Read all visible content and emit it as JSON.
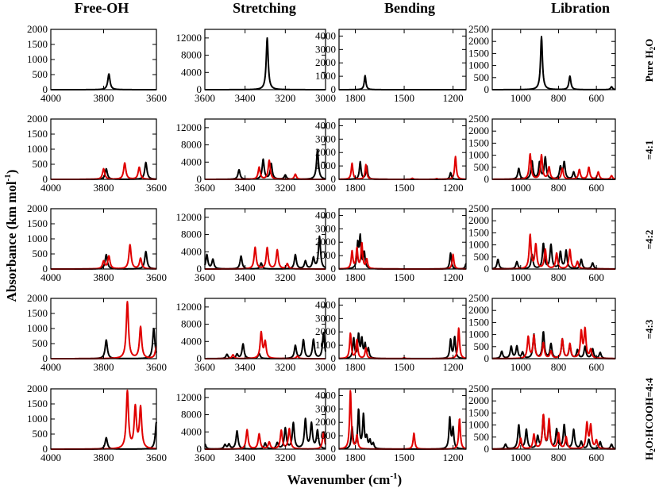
{
  "chart_data": {
    "type": "line",
    "layout": "grid",
    "xlabel_html": {
      "main": "Wavenumber (cm",
      "sup": "-1",
      "tail": ")"
    },
    "ylabel_html": {
      "main": "Absorbance (km mol",
      "sup": "-1",
      "tail": ")"
    },
    "columns": [
      {
        "title": "Free-OH",
        "xlim": [
          4000,
          3600
        ],
        "xticks": [
          4000,
          3800,
          3600
        ],
        "ylim": [
          0,
          2000
        ],
        "yticks": [
          0,
          500,
          1000,
          1500,
          2000
        ]
      },
      {
        "title": "Stretching",
        "xlim": [
          3600,
          3000
        ],
        "xticks": [
          3600,
          3400,
          3200,
          3000
        ],
        "ylim": [
          0,
          14000
        ],
        "yticks": [
          0,
          4000,
          8000,
          12000
        ]
      },
      {
        "title": "Bending",
        "xlim": [
          1900,
          1120
        ],
        "xticks": [
          1800,
          1500,
          1200
        ],
        "ylim": [
          0,
          4500
        ],
        "yticks": [
          0,
          1000,
          2000,
          3000,
          4000
        ]
      },
      {
        "title": "Libration",
        "xlim": [
          1150,
          500
        ],
        "xticks": [
          1000,
          800,
          600
        ],
        "ylim": [
          0,
          2500
        ],
        "yticks": [
          0,
          500,
          1000,
          1500,
          2000,
          2500
        ]
      }
    ],
    "rows": [
      {
        "label": {
          "pre": "Pure H",
          "sub": "2",
          "post": "O"
        }
      },
      {
        "label": {
          "pre": "=4:1",
          "sub": "",
          "post": ""
        }
      },
      {
        "label": {
          "pre": "=4:2",
          "sub": "",
          "post": ""
        }
      },
      {
        "label": {
          "pre": "=4:3",
          "sub": "",
          "post": ""
        }
      },
      {
        "label": {
          "pre": "H",
          "sub": "2",
          "post": "O:HCOOH=4:4"
        }
      }
    ],
    "series_styles": {
      "black": "#000000",
      "red": "#e00000"
    },
    "peak_width": {
      "0": 5,
      "1": 6,
      "2": 6,
      "3": 6
    },
    "panels": [
      [
        {
          "black": [
            [
              3780,
              520
            ]
          ],
          "red": []
        },
        {
          "black": [
            [
              3290,
              12000
            ]
          ],
          "red": []
        },
        {
          "black": [
            [
              1740,
              1050
            ]
          ],
          "red": []
        },
        {
          "black": [
            [
              890,
              2200
            ],
            [
              740,
              560
            ],
            [
              520,
              120
            ]
          ],
          "red": []
        }
      ],
      [
        {
          "black": [
            [
              3790,
              350
            ],
            [
              3640,
              560
            ]
          ],
          "red": [
            [
              3800,
              350
            ],
            [
              3720,
              540
            ],
            [
              3665,
              400
            ]
          ]
        },
        {
          "black": [
            [
              3430,
              2200
            ],
            [
              3310,
              4600
            ],
            [
              3270,
              3600
            ],
            [
              3200,
              1000
            ],
            [
              3040,
              6800
            ]
          ],
          "red": [
            [
              3330,
              2800
            ],
            [
              3280,
              4400
            ],
            [
              3150,
              1200
            ]
          ]
        },
        {
          "black": [
            [
              1770,
              1300
            ],
            [
              1730,
              1000
            ],
            [
              1215,
              500
            ]
          ],
          "red": [
            [
              1820,
              1200
            ],
            [
              1735,
              1100
            ],
            [
              1450,
              80
            ],
            [
              1300,
              50
            ],
            [
              1185,
              1700
            ]
          ]
        },
        {
          "black": [
            [
              1010,
              450
            ],
            [
              940,
              750
            ],
            [
              900,
              700
            ],
            [
              870,
              900
            ],
            [
              790,
              500
            ],
            [
              770,
              700
            ],
            [
              720,
              300
            ]
          ],
          "red": [
            [
              950,
              1050
            ],
            [
              890,
              1000
            ],
            [
              850,
              500
            ],
            [
              780,
              450
            ],
            [
              690,
              400
            ],
            [
              640,
              500
            ],
            [
              590,
              300
            ],
            [
              520,
              150
            ]
          ]
        }
      ],
      [
        {
          "black": [
            [
              3790,
              480
            ],
            [
              3640,
              580
            ]
          ],
          "red": [
            [
              3800,
              250
            ],
            [
              3780,
              420
            ],
            [
              3700,
              800
            ],
            [
              3660,
              350
            ]
          ]
        },
        {
          "black": [
            [
              3590,
              3300
            ],
            [
              3560,
              2200
            ],
            [
              3420,
              3000
            ],
            [
              3320,
              1400
            ],
            [
              3150,
              3300
            ],
            [
              3100,
              1800
            ],
            [
              3060,
              2500
            ],
            [
              3030,
              7500
            ]
          ],
          "red": [
            [
              3350,
              5000
            ],
            [
              3290,
              4900
            ],
            [
              3240,
              4400
            ],
            [
              3190,
              1200
            ]
          ]
        },
        {
          "black": [
            [
              1785,
              1800
            ],
            [
              1770,
              2300
            ],
            [
              1745,
              1200
            ],
            [
              1215,
              1200
            ],
            [
              1120,
              400
            ]
          ],
          "red": [
            [
              1820,
              1300
            ],
            [
              1790,
              1500
            ],
            [
              1760,
              1900
            ],
            [
              1730,
              700
            ],
            [
              1200,
              1100
            ]
          ]
        },
        {
          "black": [
            [
              1120,
              400
            ],
            [
              1020,
              300
            ],
            [
              940,
              600
            ],
            [
              880,
              1050
            ],
            [
              840,
              1000
            ],
            [
              790,
              700
            ],
            [
              760,
              750
            ],
            [
              680,
              400
            ],
            [
              620,
              250
            ]
          ],
          "red": [
            [
              950,
              1400
            ],
            [
              920,
              1000
            ],
            [
              870,
              800
            ],
            [
              810,
              650
            ],
            [
              740,
              800
            ],
            [
              700,
              300
            ]
          ]
        }
      ],
      [
        {
          "black": [
            [
              3790,
              620
            ],
            [
              3610,
              1000
            ]
          ],
          "red": [
            [
              3710,
              1880
            ],
            [
              3660,
              1050
            ],
            [
              3600,
              400
            ]
          ]
        },
        {
          "black": [
            [
              3490,
              1000
            ],
            [
              3440,
              1000
            ],
            [
              3410,
              3400
            ],
            [
              3330,
              1200
            ],
            [
              3150,
              3000
            ],
            [
              3110,
              4300
            ],
            [
              3060,
              4400
            ],
            [
              3010,
              6000
            ]
          ],
          "red": [
            [
              3460,
              900
            ],
            [
              3320,
              6000
            ],
            [
              3300,
              3800
            ],
            [
              3140,
              600
            ]
          ]
        },
        {
          "black": [
            [
              1810,
              1500
            ],
            [
              1780,
              1750
            ],
            [
              1760,
              1400
            ],
            [
              1740,
              1000
            ],
            [
              1720,
              700
            ],
            [
              1215,
              1400
            ],
            [
              1190,
              1600
            ]
          ],
          "red": [
            [
              1830,
              1900
            ],
            [
              1790,
              1400
            ],
            [
              1735,
              800
            ],
            [
              1500,
              70
            ],
            [
              1165,
              2300
            ]
          ]
        },
        {
          "black": [
            [
              1100,
              300
            ],
            [
              1050,
              500
            ],
            [
              1020,
              500
            ],
            [
              990,
              250
            ],
            [
              930,
              1000
            ],
            [
              880,
              1100
            ],
            [
              840,
              600
            ],
            [
              780,
              800
            ],
            [
              740,
              550
            ],
            [
              700,
              350
            ],
            [
              660,
              500
            ],
            [
              620,
              400
            ],
            [
              580,
              250
            ]
          ],
          "red": [
            [
              960,
              900
            ],
            [
              930,
              950
            ],
            [
              880,
              650
            ],
            [
              840,
              300
            ],
            [
              780,
              800
            ],
            [
              740,
              600
            ],
            [
              680,
              1100
            ],
            [
              660,
              1200
            ],
            [
              630,
              350
            ]
          ]
        }
      ],
      [
        {
          "black": [
            [
              3790,
              380
            ],
            [
              3600,
              900
            ]
          ],
          "red": [
            [
              3710,
              1900
            ],
            [
              3680,
              1350
            ],
            [
              3660,
              1350
            ]
          ]
        },
        {
          "black": [
            [
              3600,
              1200
            ],
            [
              3500,
              1000
            ],
            [
              3480,
              1100
            ],
            [
              3440,
              4200
            ],
            [
              3300,
              1400
            ],
            [
              3240,
              1400
            ],
            [
              3200,
              4800
            ],
            [
              3160,
              6000
            ],
            [
              3100,
              6800
            ],
            [
              3070,
              5800
            ],
            [
              3040,
              4200
            ]
          ],
          "red": [
            [
              3390,
              4500
            ],
            [
              3330,
              3500
            ],
            [
              3280,
              1600
            ],
            [
              3220,
              4300
            ],
            [
              3180,
              4700
            ],
            [
              3010,
              4000
            ]
          ]
        },
        {
          "black": [
            [
              1820,
              1600
            ],
            [
              1780,
              2900
            ],
            [
              1750,
              2500
            ],
            [
              1730,
              800
            ],
            [
              1710,
              600
            ],
            [
              1690,
              400
            ],
            [
              1220,
              2300
            ],
            [
              1200,
              1500
            ]
          ],
          "red": [
            [
              1830,
              4400
            ],
            [
              1790,
              1000
            ],
            [
              1440,
              1200
            ],
            [
              1160,
              2300
            ]
          ]
        },
        {
          "black": [
            [
              1080,
              200
            ],
            [
              1010,
              1000
            ],
            [
              970,
              800
            ],
            [
              910,
              500
            ],
            [
              880,
              1350
            ],
            [
              850,
              1000
            ],
            [
              810,
              800
            ],
            [
              770,
              1000
            ],
            [
              720,
              800
            ],
            [
              680,
              300
            ],
            [
              640,
              400
            ],
            [
              580,
              300
            ],
            [
              520,
              200
            ]
          ],
          "red": [
            [
              1000,
              450
            ],
            [
              930,
              600
            ],
            [
              880,
              1400
            ],
            [
              850,
              1200
            ],
            [
              800,
              650
            ],
            [
              760,
              500
            ],
            [
              650,
              1050
            ],
            [
              630,
              950
            ],
            [
              600,
              350
            ]
          ]
        }
      ]
    ]
  }
}
